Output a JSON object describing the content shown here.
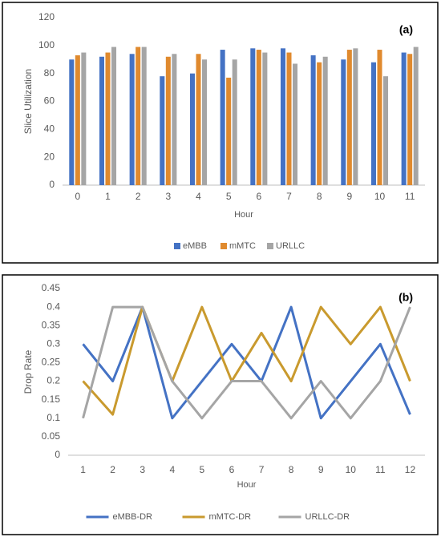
{
  "chart_data": [
    {
      "type": "bar",
      "annotation": "(a)",
      "y_label": "Slice Utilization",
      "x_label": "Hour",
      "categories": [
        0,
        1,
        2,
        3,
        4,
        5,
        6,
        7,
        8,
        9,
        10,
        11
      ],
      "series": [
        {
          "name": "eMBB",
          "color": "#4472c4",
          "values": [
            90,
            92,
            94,
            78,
            80,
            97,
            98,
            98,
            93,
            90,
            88,
            95
          ]
        },
        {
          "name": "mMTC",
          "color": "#e08a2e",
          "values": [
            93,
            95,
            99,
            92,
            94,
            77,
            97,
            95,
            88,
            97,
            97,
            94
          ]
        },
        {
          "name": "URLLC",
          "color": "#a5a5a5",
          "values": [
            95,
            99,
            99,
            94,
            90,
            90,
            95,
            87,
            92,
            98,
            78,
            99
          ]
        }
      ],
      "ylim": [
        0,
        120
      ],
      "yticks": [
        0,
        20,
        40,
        60,
        80,
        100,
        120
      ],
      "grid": false,
      "legend": "bottom"
    },
    {
      "type": "line",
      "annotation": "(b)",
      "y_label": "Drop Rate",
      "x_label": "Hour",
      "categories": [
        1,
        2,
        3,
        4,
        5,
        6,
        7,
        8,
        9,
        10,
        11,
        12
      ],
      "series": [
        {
          "name": "eMBB-DR",
          "color": "#4472c4",
          "values": [
            0.3,
            0.2,
            0.4,
            0.1,
            0.2,
            0.3,
            0.2,
            0.4,
            0.1,
            0.2,
            0.3,
            0.11
          ]
        },
        {
          "name": "mMTC-DR",
          "color": "#c99a2e",
          "values": [
            0.2,
            0.11,
            0.4,
            0.2,
            0.4,
            0.2,
            0.33,
            0.2,
            0.4,
            0.3,
            0.4,
            0.2
          ]
        },
        {
          "name": "URLLC-DR",
          "color": "#a5a5a5",
          "values": [
            0.1,
            0.4,
            0.4,
            0.2,
            0.1,
            0.2,
            0.2,
            0.1,
            0.2,
            0.1,
            0.2,
            0.4
          ]
        }
      ],
      "ylim": [
        0,
        0.45
      ],
      "yticks": [
        0,
        0.05,
        0.1,
        0.15,
        0.2,
        0.25,
        0.3,
        0.35,
        0.4,
        0.45
      ],
      "grid": false,
      "legend": "bottom"
    }
  ]
}
